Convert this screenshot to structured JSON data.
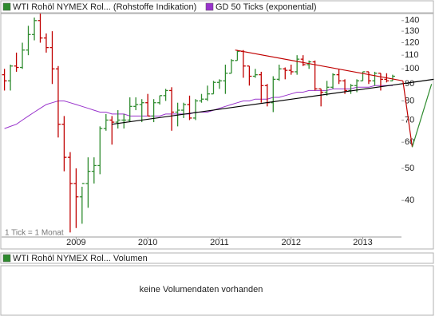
{
  "chart_data": {
    "type": "ohlc",
    "legend": [
      "WTI Rohöl NYMEX Rol... (Rohstoffe Indikation)",
      "GD 50 Ticks (exponential)"
    ],
    "note": "1 Tick = 1 Monat",
    "log": true,
    "xlim": [
      2007.96,
      2013.54
    ],
    "xticks": [
      2009,
      2010,
      2011,
      2012,
      2013
    ],
    "ylim": [
      31,
      147
    ],
    "yticks": [
      40,
      50,
      60,
      70,
      80,
      90,
      100,
      110,
      120,
      130,
      140
    ],
    "x": [
      2008,
      2008.083,
      2008.167,
      2008.25,
      2008.333,
      2008.417,
      2008.5,
      2008.583,
      2008.667,
      2008.75,
      2008.833,
      2008.917,
      2009,
      2009.083,
      2009.167,
      2009.25,
      2009.333,
      2009.417,
      2009.5,
      2009.583,
      2009.667,
      2009.75,
      2009.833,
      2009.917,
      2010,
      2010.083,
      2010.167,
      2010.25,
      2010.333,
      2010.417,
      2010.5,
      2010.583,
      2010.667,
      2010.75,
      2010.833,
      2010.917,
      2011,
      2011.083,
      2011.167,
      2011.25,
      2011.333,
      2011.417,
      2011.5,
      2011.583,
      2011.667,
      2011.75,
      2011.833,
      2011.917,
      2012,
      2012.083,
      2012.167,
      2012.25,
      2012.333,
      2012.417,
      2012.5,
      2012.583,
      2012.667,
      2012.75,
      2012.833,
      2012.917,
      2013,
      2013.083,
      2013.167,
      2013.25,
      2013.333,
      2013.417
    ],
    "series": [
      {
        "name": "WTI Rohöl NYMEX Rol... (Rohstoffe Indikation)",
        "color": "#2e8b2e",
        "up_color": "#2e8b2e",
        "down_color": "#c00000",
        "open": [
          96,
          92,
          102,
          101,
          114,
          127,
          140,
          124,
          116,
          100,
          68,
          54,
          45,
          41,
          45,
          49,
          51,
          66,
          70,
          69,
          70,
          70,
          77,
          78,
          79,
          72,
          79,
          83,
          86,
          74,
          75,
          78,
          71,
          80,
          81,
          84,
          91,
          92,
          97,
          106,
          113,
          102,
          95,
          96,
          89,
          79,
          93,
          100,
          99,
          98,
          107,
          103,
          105,
          87,
          85,
          88,
          96,
          92,
          86,
          89,
          92,
          98,
          92,
          97,
          93,
          92
        ],
        "high": [
          100,
          103,
          112,
          120,
          135,
          143,
          147,
          128,
          130,
          102,
          72,
          56,
          50,
          44,
          54,
          54,
          67,
          73,
          72,
          75,
          73,
          82,
          82,
          81,
          84,
          81,
          83,
          87,
          88,
          79,
          79,
          83,
          81,
          84,
          89,
          92,
          93,
          103,
          107,
          114,
          114,
          102,
          100,
          98,
          90,
          95,
          103,
          101,
          103,
          110,
          110,
          106,
          106,
          87,
          92,
          97,
          100,
          93,
          90,
          93,
          98,
          98,
          98,
          97,
          97,
          96
        ],
        "low": [
          86,
          86,
          98,
          100,
          110,
          122,
          120,
          112,
          90,
          62,
          49,
          32,
          33,
          34,
          38,
          45,
          48,
          65,
          59,
          66,
          66,
          69,
          75,
          69,
          72,
          69,
          78,
          80,
          65,
          67,
          71,
          70,
          70,
          79,
          80,
          84,
          87,
          84,
          97,
          106,
          94,
          89,
          94,
          79,
          77,
          74,
          92,
          93,
          96,
          96,
          102,
          100,
          86,
          77,
          83,
          87,
          90,
          84,
          84,
          85,
          92,
          90,
          89,
          86,
          91,
          92
        ],
        "close": [
          92,
          102,
          101,
          114,
          127,
          140,
          124,
          116,
          100,
          68,
          54,
          45,
          41,
          45,
          49,
          51,
          66,
          70,
          69,
          70,
          70,
          77,
          78,
          79,
          72,
          79,
          83,
          86,
          74,
          75,
          78,
          71,
          80,
          81,
          84,
          91,
          92,
          97,
          106,
          113,
          102,
          95,
          96,
          89,
          79,
          93,
          100,
          99,
          98,
          107,
          103,
          105,
          87,
          85,
          88,
          96,
          92,
          86,
          89,
          92,
          98,
          92,
          97,
          93,
          92,
          95
        ]
      },
      {
        "name": "GD 50 Ticks (exponential)",
        "color": "#9933cc",
        "values": [
          66,
          67,
          68,
          70,
          72,
          74,
          76,
          78,
          79,
          80,
          80,
          79,
          78,
          77,
          76,
          75,
          74,
          74,
          73,
          73,
          73,
          72,
          72,
          72,
          72,
          72,
          72,
          73,
          73,
          73,
          73,
          73,
          74,
          74,
          74,
          75,
          76,
          77,
          78,
          79,
          80,
          80,
          81,
          81,
          81,
          82,
          82,
          83,
          84,
          85,
          85,
          86,
          86,
          86,
          86,
          87,
          87,
          87,
          87,
          88,
          88,
          88,
          89,
          89,
          89,
          89
        ]
      }
    ],
    "trendlines": [
      {
        "color": "#000000",
        "x": [
          2009.5,
          2013.99
        ],
        "y": [
          68,
          93
        ]
      },
      {
        "color": "#c00000",
        "x": [
          2011.22,
          2013.56
        ],
        "y": [
          114,
          92
        ]
      },
      {
        "color": "#c00000",
        "x": [
          2013.56,
          2013.69
        ],
        "y": [
          92,
          58
        ]
      },
      {
        "color": "#2e8b2e",
        "x": [
          2013.69,
          2013.96
        ],
        "y": [
          58,
          90
        ]
      }
    ],
    "volume_title": "WTI Rohöl NYMEX Rol... Volumen",
    "volume_message": "keine Volumendaten vorhanden"
  }
}
